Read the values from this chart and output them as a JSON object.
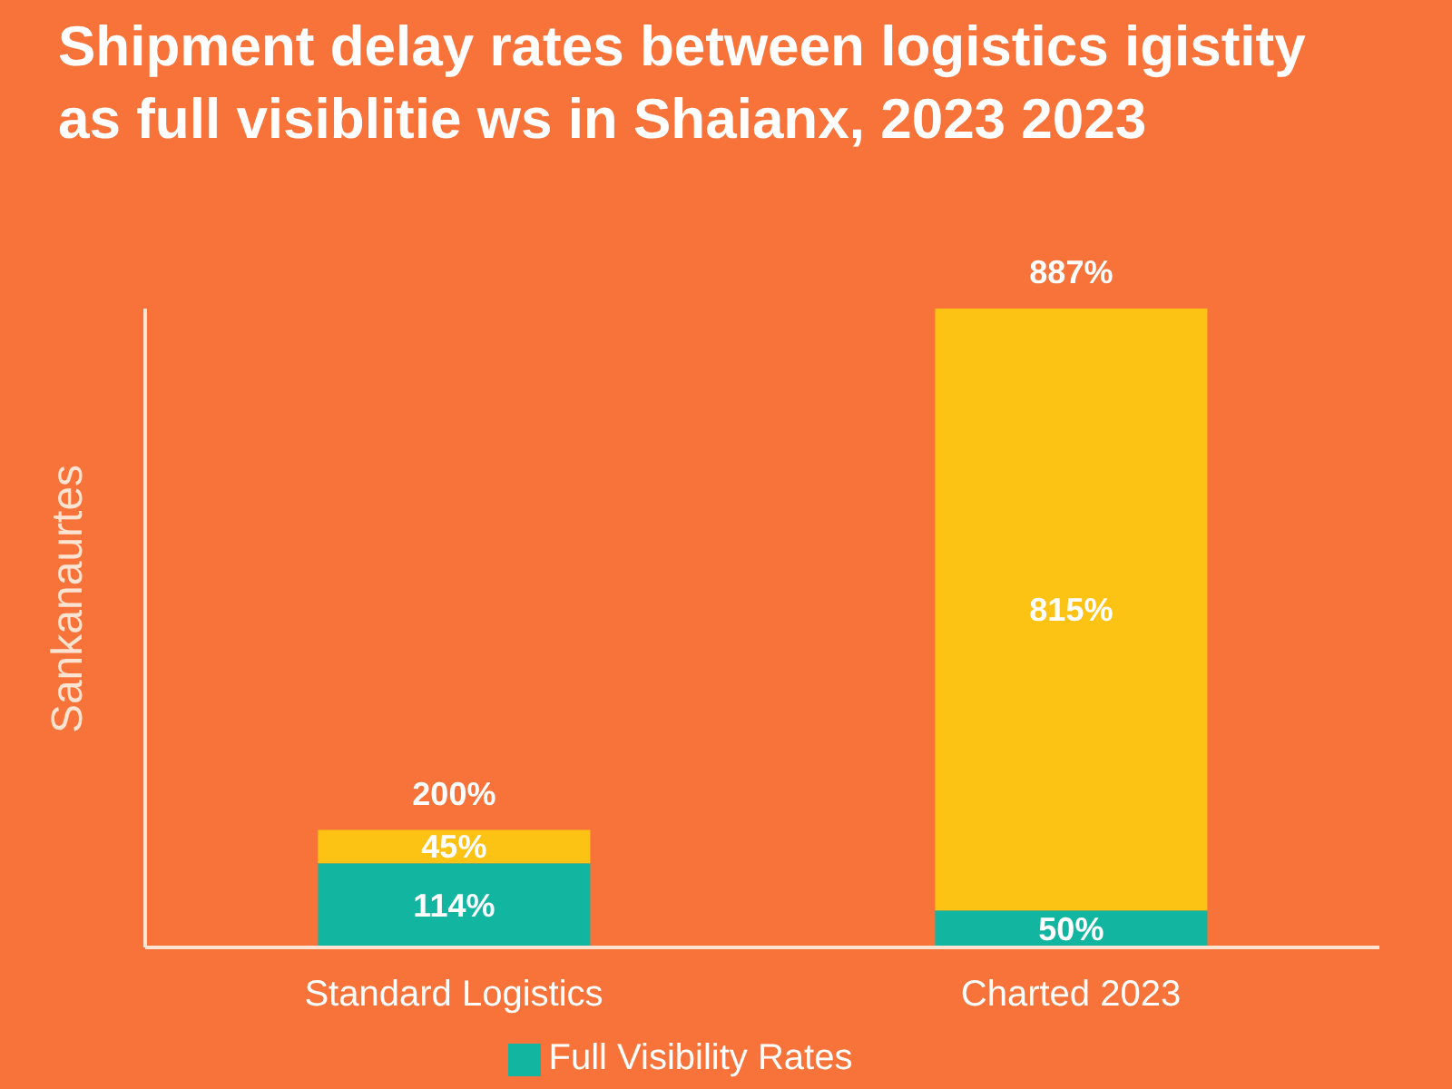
{
  "chart_data": {
    "type": "bar",
    "title": "Shipment delay rates between logistics igistity as full visiblitie ws in Shaianx, 2023 2023",
    "ylabel": "Sankanaurtes",
    "categories": [
      "Standard Logistics",
      "Charted 2023"
    ],
    "stacked": true,
    "series": [
      {
        "name": "Full Visibility Rates",
        "color": "#12b5a0",
        "values": [
          114,
          50
        ],
        "value_labels": [
          "114%",
          "50%"
        ]
      },
      {
        "color": "#fcc314",
        "values": [
          45,
          815
        ],
        "value_labels": [
          "45%",
          "815%"
        ]
      }
    ],
    "annotations": [
      "200%",
      "887%"
    ],
    "legend": "bottom"
  }
}
